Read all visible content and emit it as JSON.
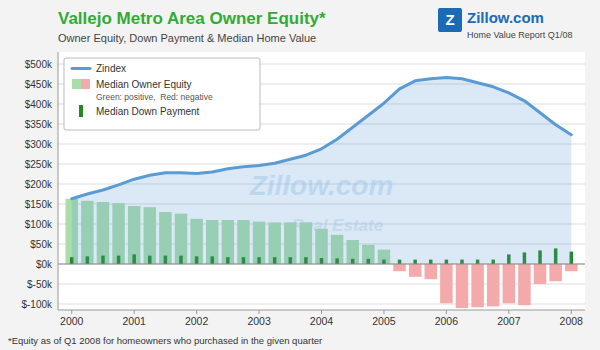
{
  "chart_data": {
    "type": "bar",
    "title": "Vallejo Metro Area Owner Equity*",
    "subtitle": "Owner Equity, Down Payment & Median Home Value",
    "annotations": [
      "*Equity as of Q1 2008 for homeowners who purchased in the given quarter",
      "Z",
      "Zillow.com",
      "Home Value Report Q1/08",
      "Zillow.com",
      "Real Estate",
      "Green: positive,  Red: negative"
    ],
    "x": [
      2000.0,
      2000.25,
      2000.5,
      2000.75,
      2001.0,
      2001.25,
      2001.5,
      2001.75,
      2002.0,
      2002.25,
      2002.5,
      2002.75,
      2003.0,
      2003.25,
      2003.5,
      2003.75,
      2004.0,
      2004.25,
      2004.5,
      2004.75,
      2005.0,
      2005.25,
      2005.5,
      2005.75,
      2006.0,
      2006.25,
      2006.5,
      2006.75,
      2007.0,
      2007.25,
      2007.5,
      2007.75,
      2008.0
    ],
    "series": [
      {
        "name": "Zindex",
        "type": "line",
        "color": "#5b9bd5",
        "values": [
          163000,
          175000,
          185000,
          198000,
          212000,
          222000,
          228000,
          228000,
          226000,
          230000,
          238000,
          243000,
          246000,
          252000,
          262000,
          272000,
          288000,
          312000,
          342000,
          372000,
          402000,
          438000,
          458000,
          463000,
          466000,
          463000,
          453000,
          443000,
          428000,
          408000,
          378000,
          348000,
          323000
        ]
      },
      {
        "name": "Median Owner Equity",
        "type": "bar",
        "colors": [
          "#aaddaa",
          "#aaddaa",
          "#aaddaa",
          "#aaddaa",
          "#aaddaa",
          "#aaddaa",
          "#aaddaa",
          "#aaddaa",
          "#aaddaa",
          "#aaddaa",
          "#aaddaa",
          "#aaddaa",
          "#aaddaa",
          "#aaddaa",
          "#aaddaa",
          "#aaddaa",
          "#aaddaa",
          "#aaddaa",
          "#aaddaa",
          "#aaddaa",
          "#aaddaa",
          "#f4aaaa",
          "#f4aaaa",
          "#f4aaaa",
          "#f4aaaa",
          "#f4aaaa",
          "#f4aaaa",
          "#f4aaaa",
          "#f4aaaa",
          "#f4aaaa",
          "#f4aaaa",
          "#f4aaaa",
          "#f4aaaa"
        ],
        "values": [
          163000,
          158000,
          155000,
          152000,
          145000,
          142000,
          130000,
          126000,
          113000,
          110000,
          110000,
          110000,
          106000,
          104000,
          104000,
          104000,
          88000,
          73000,
          60000,
          48000,
          36000,
          -18000,
          -32000,
          -38000,
          -98000,
          -110000,
          -108000,
          -106000,
          -98000,
          -103000,
          -50000,
          -43000,
          -18000
        ]
      },
      {
        "name": "Median Down Payment",
        "type": "bar",
        "color": "#228822",
        "values": [
          17000,
          19000,
          21000,
          21000,
          24000,
          21000,
          21000,
          21000,
          19000,
          19000,
          17000,
          17000,
          17000,
          17000,
          17000,
          17000,
          15000,
          14000,
          13000,
          13000,
          11000,
          11000,
          11000,
          11000,
          11000,
          11000,
          11000,
          11000,
          24000,
          29000,
          34000,
          39000,
          31000
        ]
      }
    ],
    "xlim": [
      1999.78,
      2008.22
    ],
    "xticks": [
      2000,
      2001,
      2002,
      2003,
      2004,
      2005,
      2006,
      2007,
      2008
    ],
    "ylim": [
      -115000,
      530000
    ],
    "yticks": [
      {
        "value": -100000,
        "label": "$-100k"
      },
      {
        "value": -50000,
        "label": "$-50k"
      },
      {
        "value": 0,
        "label": "$0k"
      },
      {
        "value": 50000,
        "label": "$50k"
      },
      {
        "value": 100000,
        "label": "$100k"
      },
      {
        "value": 150000,
        "label": "$150k"
      },
      {
        "value": 200000,
        "label": "$200k"
      },
      {
        "value": 250000,
        "label": "$250k"
      },
      {
        "value": 300000,
        "label": "$300k"
      },
      {
        "value": 350000,
        "label": "$350k"
      },
      {
        "value": 400000,
        "label": "$400k"
      },
      {
        "value": 450000,
        "label": "$450k"
      },
      {
        "value": 500000,
        "label": "$500k"
      }
    ],
    "grid": true,
    "legend": "upper left"
  }
}
